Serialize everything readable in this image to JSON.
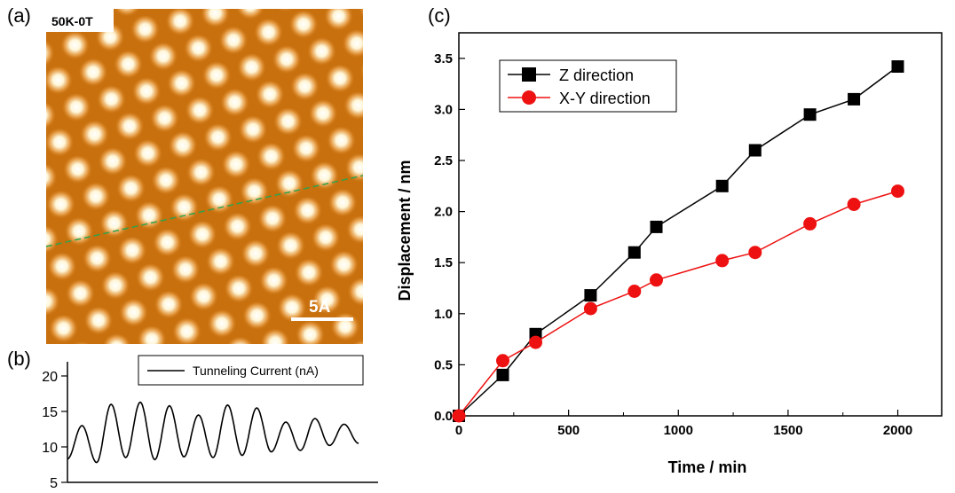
{
  "panels": {
    "a": {
      "panel_label": "(a)",
      "condition_label": "50K-0T",
      "scale_bar_label": "5A",
      "colors": {
        "atom": "#fff6d8",
        "background": "#c8700e",
        "line_cut": "#2fa14a"
      }
    },
    "b": {
      "panel_label": "(b)"
    },
    "c": {
      "panel_label": "(c)"
    }
  },
  "chart_data": [
    {
      "type": "line",
      "panel": "b",
      "legend": "Tunneling Current (nA)",
      "legend_position": "top-right",
      "ylim": [
        5,
        22
      ],
      "yticks": [
        5,
        10,
        15,
        20
      ],
      "ytick_labels": [
        "5",
        "10",
        "15",
        "20"
      ],
      "oscillation": {
        "peaks": [
          13.0,
          16.0,
          16.3,
          15.8,
          14.5,
          15.9,
          15.5,
          13.5,
          14.0,
          13.2
        ],
        "troughs": [
          8.3,
          7.8,
          8.5,
          8.2,
          8.6,
          8.5,
          8.8,
          9.3,
          9.5,
          10.2,
          10.5
        ]
      },
      "series_color": "#000000"
    },
    {
      "type": "line",
      "panel": "c",
      "xlabel": "Time / min",
      "ylabel": "Displacement / nm",
      "xlim": [
        0,
        2200
      ],
      "ylim": [
        0,
        3.75
      ],
      "xticks": [
        0,
        500,
        1000,
        1500,
        2000
      ],
      "xtick_labels": [
        "0",
        "500",
        "1000",
        "1500",
        "2000"
      ],
      "yticks": [
        0,
        0.5,
        1.0,
        1.5,
        2.0,
        2.5,
        3.0,
        3.5
      ],
      "ytick_labels": [
        "0.0",
        "0.5",
        "1.0",
        "1.5",
        "2.0",
        "2.5",
        "3.0",
        "3.5"
      ],
      "legend_position": "top-left",
      "grid": false,
      "series": [
        {
          "name": "Z direction",
          "marker": "square",
          "color": "#000000",
          "x": [
            0,
            200,
            350,
            600,
            800,
            900,
            1200,
            1350,
            1600,
            1800,
            2000
          ],
          "y": [
            0.0,
            0.4,
            0.8,
            1.18,
            1.6,
            1.85,
            2.25,
            2.6,
            2.95,
            3.1,
            3.42
          ]
        },
        {
          "name": "X-Y direction",
          "marker": "circle",
          "color": "#ee1111",
          "x": [
            0,
            200,
            350,
            600,
            800,
            900,
            1200,
            1350,
            1600,
            1800,
            2000
          ],
          "y": [
            0.0,
            0.54,
            0.72,
            1.05,
            1.22,
            1.33,
            1.52,
            1.6,
            1.88,
            2.07,
            2.2
          ]
        }
      ]
    }
  ]
}
